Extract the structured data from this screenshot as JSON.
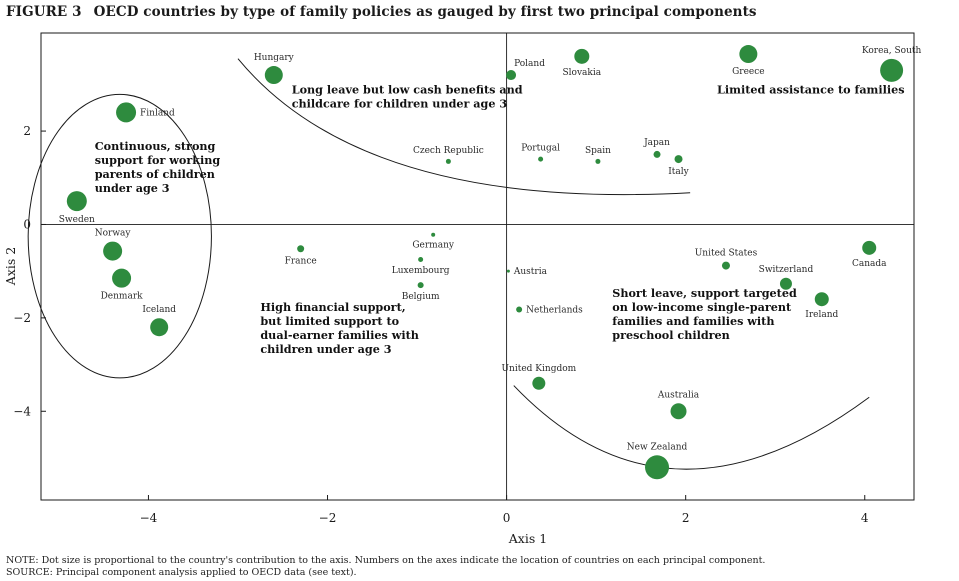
{
  "figure": {
    "number": "FIGURE 3",
    "title": "OECD countries by type of family policies as gauged by first two principal components"
  },
  "chart_data": {
    "type": "scatter",
    "xlabel": "Axis 1",
    "ylabel": "Axis 2",
    "xlim": [
      -5.2,
      4.55
    ],
    "ylim": [
      -5.9,
      4.1
    ],
    "xticks": [
      -4,
      -2,
      0,
      2,
      4
    ],
    "yticks": [
      2,
      0,
      -2,
      -4
    ],
    "dot_color": "#2e8b3e",
    "points": [
      {
        "name": "Finland",
        "x": -4.25,
        "y": 2.4,
        "size": 10,
        "label_pos": "right"
      },
      {
        "name": "Sweden",
        "x": -4.8,
        "y": 0.5,
        "size": 10,
        "label_pos": "below"
      },
      {
        "name": "Norway",
        "x": -4.4,
        "y": -0.57,
        "size": 9.5,
        "label_pos": "above"
      },
      {
        "name": "Denmark",
        "x": -4.3,
        "y": -1.15,
        "size": 9.5,
        "label_pos": "below"
      },
      {
        "name": "Iceland",
        "x": -3.88,
        "y": -2.2,
        "size": 9,
        "label_pos": "above"
      },
      {
        "name": "Hungary",
        "x": -2.6,
        "y": 3.2,
        "size": 9,
        "label_pos": "above"
      },
      {
        "name": "France",
        "x": -2.3,
        "y": -0.52,
        "size": 3.5,
        "label_pos": "below"
      },
      {
        "name": "Czech Republic",
        "x": -0.65,
        "y": 1.35,
        "size": 2.5,
        "label_pos": "above"
      },
      {
        "name": "Germany",
        "x": -0.82,
        "y": -0.22,
        "size": 2,
        "label_pos": "below"
      },
      {
        "name": "Luxembourg",
        "x": -0.96,
        "y": -0.75,
        "size": 2.5,
        "label_pos": "below"
      },
      {
        "name": "Belgium",
        "x": -0.96,
        "y": -1.3,
        "size": 3,
        "label_pos": "below"
      },
      {
        "name": "Poland",
        "x": 0.05,
        "y": 3.2,
        "size": 5,
        "label_pos": "right-above"
      },
      {
        "name": "Slovakia",
        "x": 0.84,
        "y": 3.6,
        "size": 7.5,
        "label_pos": "below"
      },
      {
        "name": "Greece",
        "x": 2.7,
        "y": 3.65,
        "size": 9,
        "label_pos": "below"
      },
      {
        "name": "Korea, South",
        "x": 4.3,
        "y": 3.3,
        "size": 11.5,
        "label_pos": "above"
      },
      {
        "name": "Portugal",
        "x": 0.38,
        "y": 1.4,
        "size": 2.5,
        "label_pos": "above"
      },
      {
        "name": "Spain",
        "x": 1.02,
        "y": 1.35,
        "size": 2.5,
        "label_pos": "above"
      },
      {
        "name": "Japan",
        "x": 1.68,
        "y": 1.5,
        "size": 3.5,
        "label_pos": "above"
      },
      {
        "name": "Italy",
        "x": 1.92,
        "y": 1.4,
        "size": 4,
        "label_pos": "below"
      },
      {
        "name": "Austria",
        "x": 0.02,
        "y": -1.0,
        "size": 1.5,
        "label_pos": "right"
      },
      {
        "name": "Netherlands",
        "x": 0.14,
        "y": -1.82,
        "size": 3,
        "label_pos": "right"
      },
      {
        "name": "United Kingdom",
        "x": 0.36,
        "y": -3.4,
        "size": 6.5,
        "label_pos": "above"
      },
      {
        "name": "United States",
        "x": 2.45,
        "y": -0.88,
        "size": 4,
        "label_pos": "above"
      },
      {
        "name": "Switzerland",
        "x": 3.12,
        "y": -1.27,
        "size": 6,
        "label_pos": "above"
      },
      {
        "name": "Canada",
        "x": 4.05,
        "y": -0.5,
        "size": 7,
        "label_pos": "below"
      },
      {
        "name": "Ireland",
        "x": 3.52,
        "y": -1.6,
        "size": 7,
        "label_pos": "below"
      },
      {
        "name": "Australia",
        "x": 1.92,
        "y": -4.0,
        "size": 8,
        "label_pos": "above"
      },
      {
        "name": "New Zealand",
        "x": 1.68,
        "y": -5.2,
        "size": 12,
        "label_pos": "above"
      }
    ],
    "annotations": [
      {
        "id": "continuous",
        "lines": [
          "Continuous, strong",
          "support for working",
          "parents of children",
          "under age 3"
        ],
        "x": -4.6,
        "y": 1.6
      },
      {
        "id": "long-leave",
        "lines": [
          "Long leave but low cash benefits and",
          "childcare for children under age 3"
        ],
        "x": -2.4,
        "y": 2.8
      },
      {
        "id": "limited",
        "lines": [
          "Limited assistance to families"
        ],
        "x": 2.35,
        "y": 2.8
      },
      {
        "id": "high-financial",
        "lines": [
          "High financial support,",
          "but limited support to",
          "dual-earner families with",
          "children under age 3"
        ],
        "x": -2.75,
        "y": -1.85
      },
      {
        "id": "short-leave",
        "lines": [
          "Short leave, support targeted",
          "on low-income single-parent",
          "families and families with",
          "preschool children"
        ],
        "x": 1.18,
        "y": -1.55
      }
    ]
  },
  "footnotes": {
    "note": "NOTE: Dot size is proportional to the country's contribution to the axis. Numbers on the axes indicate the location of countries on each principal component.",
    "source": "SOURCE: Principal component analysis applied to OECD data (see text)."
  }
}
